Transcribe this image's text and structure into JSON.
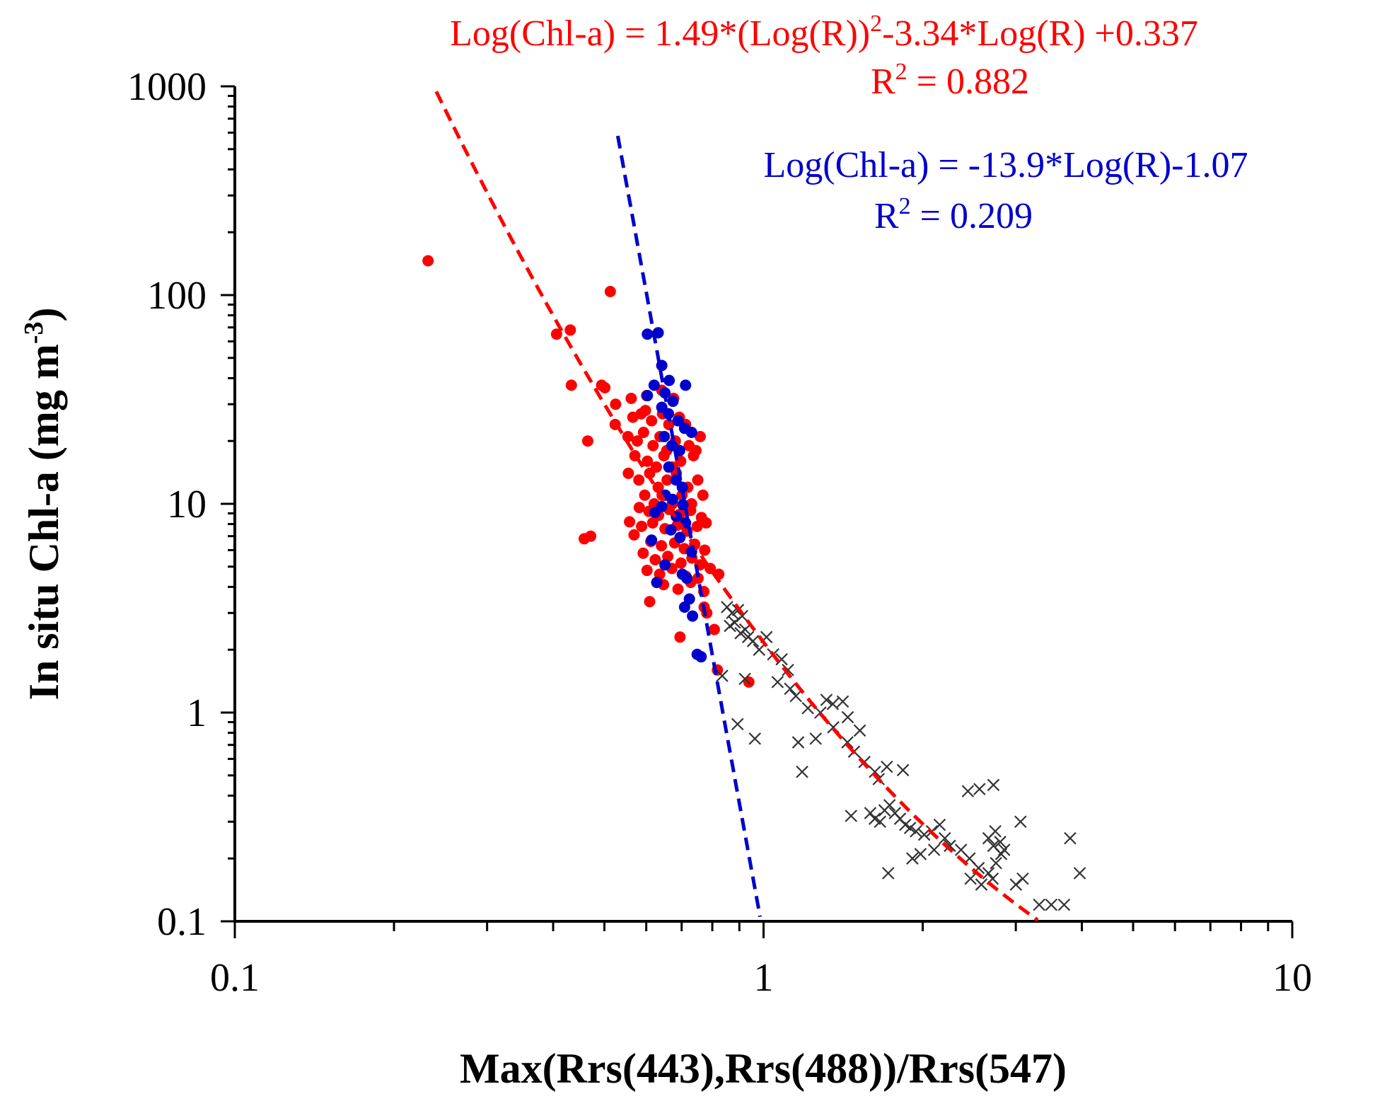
{
  "chart_data": {
    "type": "scatter",
    "title": "",
    "xlabel": "Max(Rrs(443),Rrs(488))/Rrs(547)",
    "ylabel": "In situ Chl-a (mg m-3)",
    "ylabel_text": "In situ Chl-a (mg m",
    "ylabel_sup": "-3",
    "ylabel_close": ")",
    "xscale": "log",
    "yscale": "log",
    "xlim": [
      0.1,
      10
    ],
    "ylim": [
      0.1,
      1000
    ],
    "x_ticks": [
      {
        "value": 0.1,
        "label": "0.1"
      },
      {
        "value": 1,
        "label": "1"
      },
      {
        "value": 10,
        "label": "10"
      }
    ],
    "y_ticks": [
      {
        "value": 0.1,
        "label": "0.1"
      },
      {
        "value": 1,
        "label": "1"
      },
      {
        "value": 10,
        "label": "10"
      },
      {
        "value": 100,
        "label": "100"
      },
      {
        "value": 1000,
        "label": "1000"
      }
    ],
    "grid": false,
    "colors": {
      "red": "#ff0000",
      "blue": "#0000cc",
      "black": "#333333"
    },
    "annotations": {
      "red_eq_a": "Log(Chl-a) = 1.49*(Log(R))",
      "red_eq_sup": "2",
      "red_eq_b": "-3.34*Log(R) +0.337",
      "red_r2_a": "R",
      "red_r2_sup": "2",
      "red_r2_b": " = 0.882",
      "blue_eq": "Log(Chl-a) = -13.9*Log(R)-1.07",
      "blue_r2_a": "R",
      "blue_r2_sup": "2",
      "blue_r2_b": " = 0.209"
    },
    "fits": [
      {
        "name": "quadratic fit",
        "color": "#ff0000",
        "type": "quadratic",
        "a": 1.49,
        "b": -3.34,
        "c": 0.337,
        "x_range": [
          0.23,
          3.3
        ]
      },
      {
        "name": "linear fit",
        "color": "#0000cc",
        "type": "linear",
        "b": -13.9,
        "c": -1.07,
        "x_range": [
          0.53,
          0.99
        ]
      }
    ],
    "series": [
      {
        "name": "red points",
        "marker": "circle",
        "color": "#ff0000",
        "points": [
          [
            0.232,
            146
          ],
          [
            0.513,
            104
          ],
          [
            0.406,
            65
          ],
          [
            0.431,
            68
          ],
          [
            0.494,
            37
          ],
          [
            0.501,
            36
          ],
          [
            0.433,
            37
          ],
          [
            0.562,
            32
          ],
          [
            0.525,
            30
          ],
          [
            0.601,
            33
          ],
          [
            0.642,
            35
          ],
          [
            0.676,
            32
          ],
          [
            0.566,
            26
          ],
          [
            0.587,
            27
          ],
          [
            0.598,
            28
          ],
          [
            0.614,
            25
          ],
          [
            0.644,
            27
          ],
          [
            0.662,
            24
          ],
          [
            0.693,
            26
          ],
          [
            0.712,
            24
          ],
          [
            0.524,
            24
          ],
          [
            0.554,
            21
          ],
          [
            0.577,
            20
          ],
          [
            0.593,
            22
          ],
          [
            0.618,
            19
          ],
          [
            0.637,
            21
          ],
          [
            0.656,
            18
          ],
          [
            0.681,
            20
          ],
          [
            0.723,
            19
          ],
          [
            0.759,
            21
          ],
          [
            0.465,
            20
          ],
          [
            0.571,
            17
          ],
          [
            0.603,
            16
          ],
          [
            0.627,
            15
          ],
          [
            0.648,
            17
          ],
          [
            0.673,
            15
          ],
          [
            0.697,
            16
          ],
          [
            0.737,
            17
          ],
          [
            0.745,
            18
          ],
          [
            0.555,
            14
          ],
          [
            0.581,
            13
          ],
          [
            0.609,
            14
          ],
          [
            0.632,
            12
          ],
          [
            0.657,
            13
          ],
          [
            0.684,
            14
          ],
          [
            0.719,
            12
          ],
          [
            0.751,
            13
          ],
          [
            0.596,
            11
          ],
          [
            0.621,
            10
          ],
          [
            0.643,
            11
          ],
          [
            0.672,
            10
          ],
          [
            0.701,
            11
          ],
          [
            0.731,
            10
          ],
          [
            0.768,
            11
          ],
          [
            0.582,
            9.6
          ],
          [
            0.607,
            9.2
          ],
          [
            0.633,
            8.8
          ],
          [
            0.663,
            9.4
          ],
          [
            0.694,
            8.9
          ],
          [
            0.728,
            9.3
          ],
          [
            0.763,
            8.6
          ],
          [
            0.558,
            8.2
          ],
          [
            0.588,
            7.8
          ],
          [
            0.617,
            8.1
          ],
          [
            0.651,
            7.6
          ],
          [
            0.687,
            7.9
          ],
          [
            0.717,
            7.4
          ],
          [
            0.749,
            7.8
          ],
          [
            0.779,
            8.1
          ],
          [
            0.569,
            7.1
          ],
          [
            0.458,
            6.8
          ],
          [
            0.471,
            7.0
          ],
          [
            0.612,
            6.6
          ],
          [
            0.641,
            6.3
          ],
          [
            0.679,
            6.5
          ],
          [
            0.708,
            6.1
          ],
          [
            0.741,
            6.4
          ],
          [
            0.774,
            6.0
          ],
          [
            0.592,
            5.8
          ],
          [
            0.624,
            5.4
          ],
          [
            0.659,
            5.6
          ],
          [
            0.698,
            5.2
          ],
          [
            0.732,
            5.5
          ],
          [
            0.758,
            5.1
          ],
          [
            0.793,
            4.9
          ],
          [
            0.602,
            4.8
          ],
          [
            0.636,
            4.6
          ],
          [
            0.671,
            4.9
          ],
          [
            0.713,
            4.5
          ],
          [
            0.752,
            4.4
          ],
          [
            0.823,
            4.6
          ],
          [
            0.647,
            4.1
          ],
          [
            0.689,
            3.9
          ],
          [
            0.728,
            4.2
          ],
          [
            0.771,
            3.8
          ],
          [
            0.609,
            3.4
          ],
          [
            0.772,
            3.2
          ],
          [
            0.781,
            3.0
          ],
          [
            0.807,
            2.5
          ],
          [
            0.695,
            2.3
          ],
          [
            0.818,
            1.6
          ],
          [
            0.938,
            1.4
          ]
        ]
      },
      {
        "name": "blue points",
        "marker": "circle",
        "color": "#0000cc",
        "points": [
          [
            0.603,
            65
          ],
          [
            0.632,
            66
          ],
          [
            0.642,
            46
          ],
          [
            0.663,
            39
          ],
          [
            0.712,
            37
          ],
          [
            0.621,
            37
          ],
          [
            0.651,
            34
          ],
          [
            0.603,
            33
          ],
          [
            0.674,
            31
          ],
          [
            0.642,
            29
          ],
          [
            0.661,
            27
          ],
          [
            0.689,
            25
          ],
          [
            0.709,
            23
          ],
          [
            0.731,
            22
          ],
          [
            0.649,
            21
          ],
          [
            0.671,
            19
          ],
          [
            0.694,
            18
          ],
          [
            0.662,
            15
          ],
          [
            0.683,
            13
          ],
          [
            0.702,
            12
          ],
          [
            0.652,
            11
          ],
          [
            0.673,
            10.5
          ],
          [
            0.642,
            9.7
          ],
          [
            0.704,
            9.9
          ],
          [
            0.623,
            9.1
          ],
          [
            0.684,
            8.7
          ],
          [
            0.712,
            8.1
          ],
          [
            0.668,
            7.5
          ],
          [
            0.695,
            6.9
          ],
          [
            0.614,
            6.7
          ],
          [
            0.731,
            5.9
          ],
          [
            0.651,
            5.1
          ],
          [
            0.702,
            4.6
          ],
          [
            0.628,
            4.2
          ],
          [
            0.716,
            4.4
          ],
          [
            0.724,
            3.5
          ],
          [
            0.709,
            3.2
          ],
          [
            0.734,
            2.9
          ],
          [
            0.749,
            1.9
          ],
          [
            0.762,
            1.85
          ]
        ]
      },
      {
        "name": "black points",
        "marker": "x",
        "color": "#333333",
        "points": [
          [
            0.853,
            3.2
          ],
          [
            0.872,
            3.0
          ],
          [
            0.895,
            3.1
          ],
          [
            0.911,
            2.9
          ],
          [
            0.882,
            2.7
          ],
          [
            0.864,
            2.6
          ],
          [
            0.905,
            2.4
          ],
          [
            0.935,
            2.3
          ],
          [
            0.955,
            2.2
          ],
          [
            0.981,
            2.0
          ],
          [
            0.923,
            2.5
          ],
          [
            1.013,
            2.3
          ],
          [
            1.043,
            1.9
          ],
          [
            1.082,
            1.8
          ],
          [
            1.112,
            1.6
          ],
          [
            1.063,
            1.4
          ],
          [
            1.123,
            1.3
          ],
          [
            1.151,
            1.2
          ],
          [
            0.922,
            1.45
          ],
          [
            0.835,
            1.5
          ],
          [
            1.213,
            1.05
          ],
          [
            1.281,
            1.0
          ],
          [
            1.352,
            1.1
          ],
          [
            1.315,
            1.15
          ],
          [
            1.412,
            1.13
          ],
          [
            1.443,
            0.95
          ],
          [
            1.355,
            0.85
          ],
          [
            1.255,
            0.75
          ],
          [
            0.893,
            0.88
          ],
          [
            0.963,
            0.75
          ],
          [
            1.163,
            0.72
          ],
          [
            1.441,
            0.72
          ],
          [
            1.521,
            0.82
          ],
          [
            1.483,
            0.65
          ],
          [
            1.552,
            0.58
          ],
          [
            1.624,
            0.52
          ],
          [
            1.711,
            0.55
          ],
          [
            1.651,
            0.48
          ],
          [
            1.835,
            0.53
          ],
          [
            1.183,
            0.52
          ],
          [
            1.464,
            0.32
          ],
          [
            1.592,
            0.33
          ],
          [
            1.623,
            0.31
          ],
          [
            1.661,
            0.3
          ],
          [
            1.694,
            0.34
          ],
          [
            1.731,
            0.36
          ],
          [
            1.772,
            0.33
          ],
          [
            1.812,
            0.31
          ],
          [
            1.854,
            0.29
          ],
          [
            1.893,
            0.28
          ],
          [
            1.942,
            0.27
          ],
          [
            2.013,
            0.26
          ],
          [
            2.082,
            0.27
          ],
          [
            2.153,
            0.29
          ],
          [
            2.202,
            0.25
          ],
          [
            2.251,
            0.23
          ],
          [
            2.102,
            0.22
          ],
          [
            1.981,
            0.21
          ],
          [
            1.912,
            0.2
          ],
          [
            2.363,
            0.22
          ],
          [
            2.452,
            0.2
          ],
          [
            2.551,
            0.18
          ],
          [
            2.663,
            0.17
          ],
          [
            2.712,
            0.16
          ],
          [
            2.582,
            0.15
          ],
          [
            2.463,
            0.16
          ],
          [
            2.752,
            0.19
          ],
          [
            2.815,
            0.21
          ],
          [
            2.721,
            0.23
          ],
          [
            2.803,
            0.24
          ],
          [
            2.664,
            0.25
          ],
          [
            2.743,
            0.27
          ],
          [
            2.852,
            0.22
          ],
          [
            2.561,
            0.43
          ],
          [
            2.721,
            0.45
          ],
          [
            2.435,
            0.42
          ],
          [
            3.001,
            0.15
          ],
          [
            3.092,
            0.16
          ],
          [
            3.062,
            0.3
          ],
          [
            3.501,
            0.12
          ],
          [
            3.702,
            0.12
          ],
          [
            3.801,
            0.25
          ],
          [
            3.963,
            0.17
          ],
          [
            3.321,
            0.12
          ],
          [
            1.721,
            0.17
          ]
        ]
      }
    ]
  }
}
